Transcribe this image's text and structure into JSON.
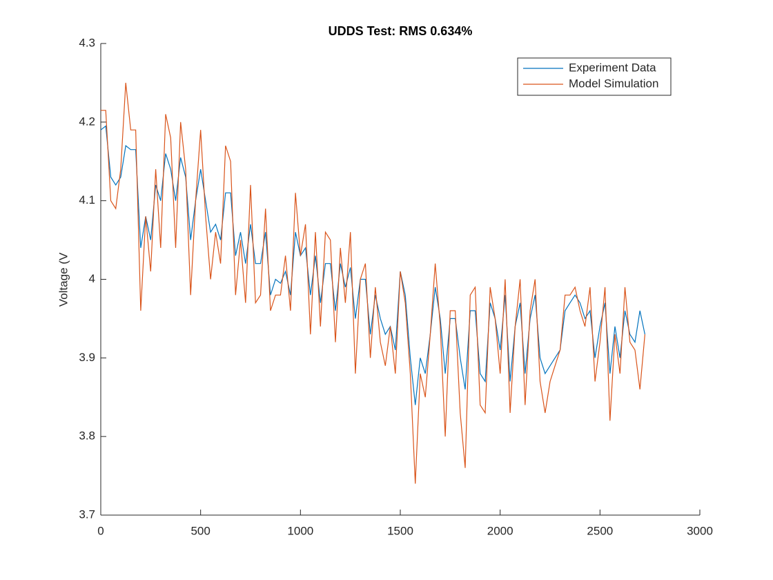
{
  "chart_data": {
    "type": "line",
    "title": "UDDS Test: RMS 0.634%",
    "ylabel": "Voltage (V",
    "x": [
      0,
      25,
      50,
      75,
      100,
      125,
      150,
      175,
      200,
      225,
      250,
      275,
      300,
      325,
      350,
      375,
      400,
      425,
      450,
      475,
      500,
      525,
      550,
      575,
      600,
      625,
      650,
      675,
      700,
      725,
      750,
      775,
      800,
      825,
      850,
      875,
      900,
      925,
      950,
      975,
      1000,
      1025,
      1050,
      1075,
      1100,
      1125,
      1150,
      1175,
      1200,
      1225,
      1250,
      1275,
      1300,
      1325,
      1350,
      1375,
      1400,
      1425,
      1450,
      1475,
      1500,
      1525,
      1550,
      1575,
      1600,
      1625,
      1650,
      1675,
      1700,
      1725,
      1750,
      1775,
      1800,
      1825,
      1850,
      1875,
      1900,
      1925,
      1950,
      1975,
      2000,
      2025,
      2050,
      2075,
      2100,
      2125,
      2150,
      2175,
      2200,
      2225,
      2250,
      2275,
      2300,
      2325,
      2350,
      2375,
      2400,
      2425,
      2450,
      2475,
      2500,
      2525,
      2550,
      2575,
      2600,
      2625,
      2650,
      2675,
      2700,
      2725
    ],
    "series": [
      {
        "name": "Experiment Data",
        "color": "#0072bd",
        "values": [
          4.19,
          4.195,
          4.13,
          4.12,
          4.13,
          4.17,
          4.165,
          4.165,
          4.04,
          4.08,
          4.05,
          4.12,
          4.1,
          4.16,
          4.14,
          4.1,
          4.155,
          4.13,
          4.05,
          4.1,
          4.14,
          4.1,
          4.06,
          4.07,
          4.05,
          4.11,
          4.11,
          4.03,
          4.06,
          4.02,
          4.07,
          4.02,
          4.02,
          4.06,
          3.98,
          4.0,
          3.995,
          4.01,
          3.98,
          4.06,
          4.03,
          4.04,
          3.98,
          4.03,
          3.97,
          4.02,
          4.02,
          3.96,
          4.02,
          3.99,
          4.015,
          3.95,
          4.0,
          4.0,
          3.93,
          3.98,
          3.95,
          3.93,
          3.94,
          3.91,
          4.01,
          3.98,
          3.9,
          3.84,
          3.9,
          3.88,
          3.93,
          3.99,
          3.95,
          3.88,
          3.95,
          3.95,
          3.9,
          3.86,
          3.96,
          3.96,
          3.88,
          3.87,
          3.97,
          3.95,
          3.91,
          3.98,
          3.87,
          3.94,
          3.97,
          3.88,
          3.95,
          3.98,
          3.9,
          3.88,
          3.89,
          3.9,
          3.91,
          3.96,
          3.97,
          3.98,
          3.97,
          3.95,
          3.96,
          3.9,
          3.94,
          3.97,
          3.88,
          3.94,
          3.9,
          3.96,
          3.93,
          3.92,
          3.96,
          3.93
        ]
      },
      {
        "name": "Model Simulation",
        "color": "#d95319",
        "values": [
          4.215,
          4.215,
          4.1,
          4.09,
          4.14,
          4.25,
          4.19,
          4.19,
          3.96,
          4.08,
          4.01,
          4.14,
          4.04,
          4.21,
          4.18,
          4.04,
          4.2,
          4.14,
          3.98,
          4.1,
          4.19,
          4.08,
          4.0,
          4.06,
          4.02,
          4.17,
          4.15,
          3.98,
          4.05,
          3.97,
          4.12,
          3.97,
          3.98,
          4.09,
          3.96,
          3.98,
          3.98,
          4.03,
          3.96,
          4.11,
          4.03,
          4.07,
          3.93,
          4.06,
          3.94,
          4.06,
          4.05,
          3.92,
          4.04,
          3.97,
          4.06,
          3.88,
          4.0,
          4.02,
          3.9,
          3.99,
          3.92,
          3.89,
          3.94,
          3.88,
          4.01,
          3.97,
          3.88,
          3.74,
          3.88,
          3.85,
          3.93,
          4.02,
          3.94,
          3.8,
          3.96,
          3.96,
          3.83,
          3.76,
          3.98,
          3.99,
          3.84,
          3.83,
          3.99,
          3.95,
          3.88,
          4.0,
          3.83,
          3.94,
          4.0,
          3.84,
          3.96,
          4.0,
          3.87,
          3.83,
          3.87,
          3.89,
          3.91,
          3.98,
          3.98,
          3.99,
          3.96,
          3.94,
          3.99,
          3.87,
          3.92,
          3.99,
          3.82,
          3.93,
          3.88,
          3.99,
          3.92,
          3.91,
          3.86,
          3.93
        ]
      }
    ],
    "xlim": [
      0,
      3000
    ],
    "xticks": [
      0,
      500,
      1000,
      1500,
      2000,
      2500,
      3000
    ],
    "ylim": [
      3.7,
      4.3
    ],
    "yticks": [
      3.7,
      3.8,
      3.9,
      4,
      4.1,
      4.2,
      4.3
    ],
    "legend": "northeast",
    "grid": false
  }
}
